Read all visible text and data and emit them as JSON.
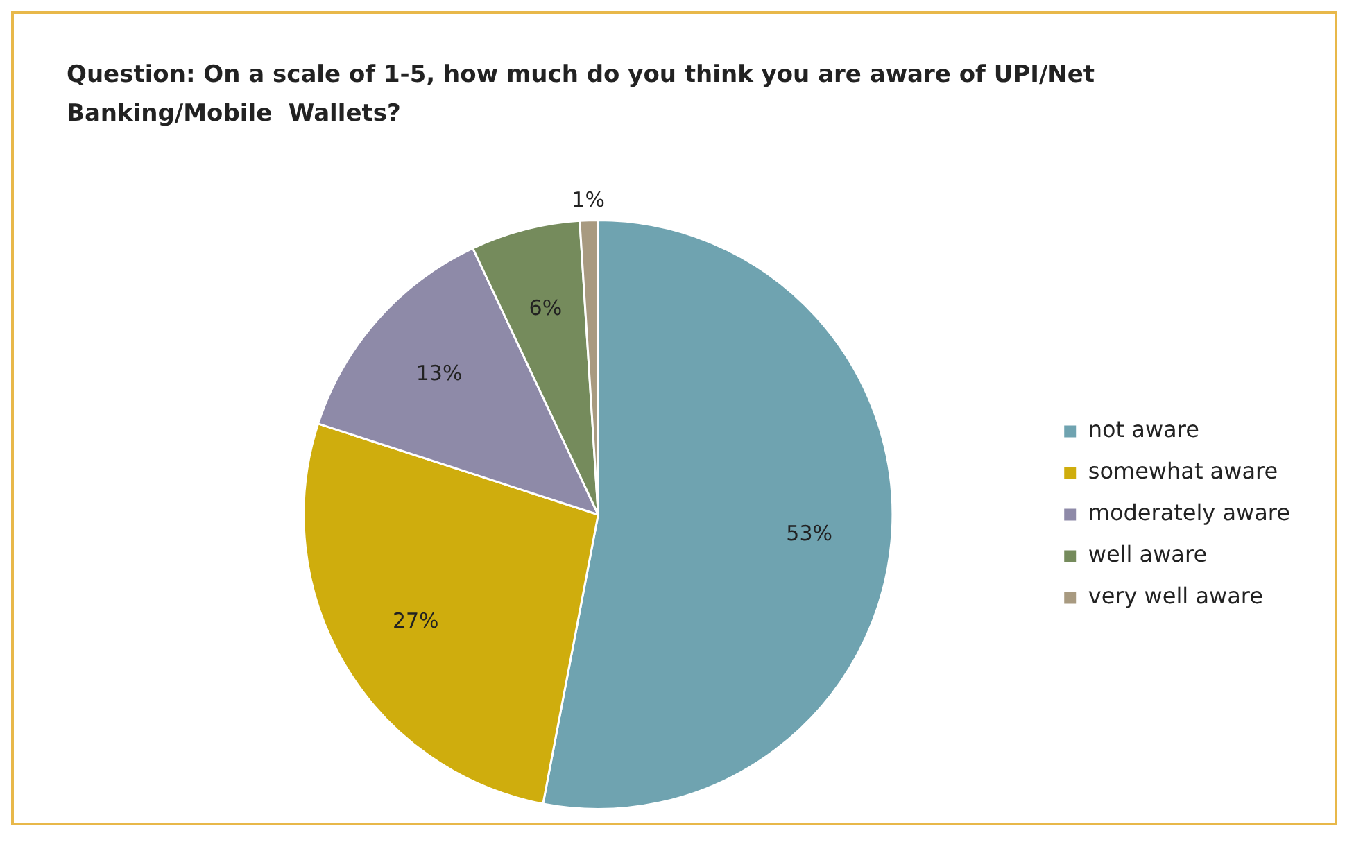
{
  "chart_data": {
    "type": "pie",
    "title": "Question: On a scale of 1-5, how much do you think you are aware of UPI/Net Banking/Mobile  Wallets?",
    "categories": [
      "not aware",
      "somewhat aware",
      "moderately aware",
      "well aware",
      "very well aware"
    ],
    "values": [
      53,
      27,
      13,
      6,
      1
    ],
    "colors": [
      "#6fa3b0",
      "#cfad0d",
      "#8e8aa8",
      "#758b5c",
      "#a89a80"
    ],
    "value_labels": [
      "53%",
      "27%",
      "13%",
      "6%",
      "1%"
    ],
    "legend": "right"
  }
}
